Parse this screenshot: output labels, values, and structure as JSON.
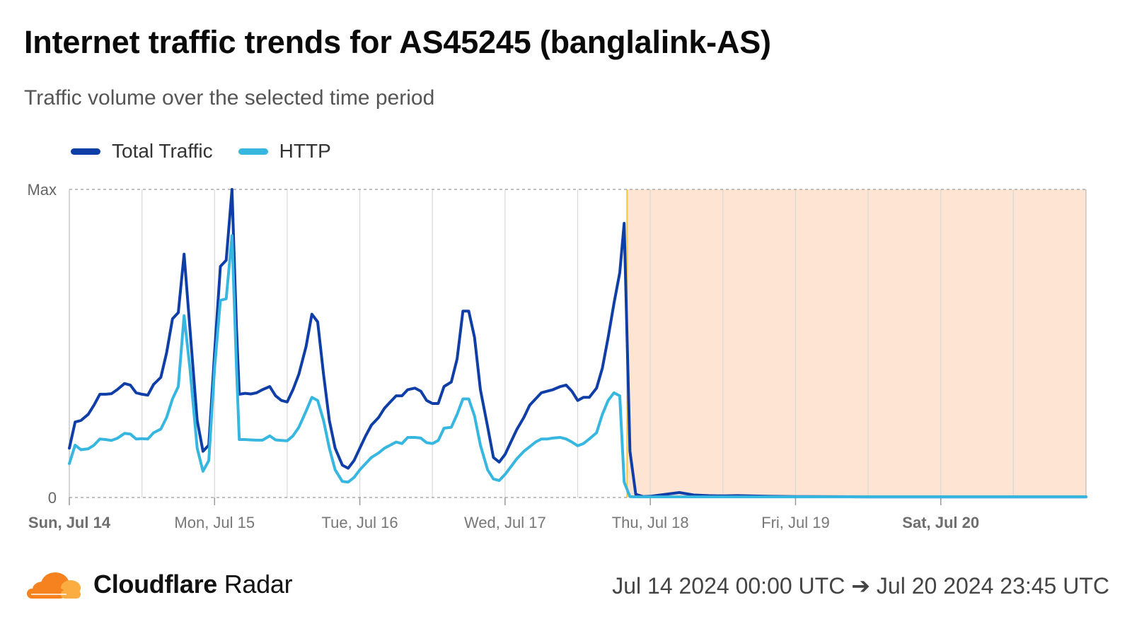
{
  "title": "Internet traffic trends for AS45245 (banglalink-AS)",
  "subtitle": "Traffic volume over the selected time period",
  "brand": {
    "name_bold": "Cloudflare",
    "name_regular": "Radar",
    "logo_colors": [
      "#f6821f",
      "#fbad41"
    ]
  },
  "date_range": "Jul 14 2024 00:00 UTC ➔ Jul 20 2024 23:45 UTC",
  "colors": {
    "total": "#0f3fa6",
    "http": "#37b7e0",
    "outage_fill": "#fde4d3",
    "outage_line": "#f5c542",
    "grid": "#d8d8d8"
  },
  "chart_data": {
    "type": "line",
    "x_unit": "days since Sun, Jul 14 2024 00:00 UTC",
    "xlim": [
      0,
      7
    ],
    "ylim": [
      0,
      1
    ],
    "y_ticks": [
      {
        "value": 0,
        "label": "0"
      },
      {
        "value": 1,
        "label": "Max"
      }
    ],
    "x_ticks": [
      {
        "value": 0,
        "label": "Sun, Jul 14",
        "bold": true
      },
      {
        "value": 1,
        "label": "Mon, Jul 15",
        "bold": false
      },
      {
        "value": 2,
        "label": "Tue, Jul 16",
        "bold": false
      },
      {
        "value": 3,
        "label": "Wed, Jul 17",
        "bold": false
      },
      {
        "value": 4,
        "label": "Thu, Jul 18",
        "bold": false
      },
      {
        "value": 5,
        "label": "Fri, Jul 19",
        "bold": false
      },
      {
        "value": 6,
        "label": "Sat, Jul 20",
        "bold": true
      }
    ],
    "grid": true,
    "legend": "top-left",
    "shaded_region": {
      "x_start": 3.84,
      "x_end": 7
    },
    "series": [
      {
        "name": "Total Traffic",
        "x": [
          0,
          0.04,
          0.08,
          0.13,
          0.17,
          0.21,
          0.25,
          0.29,
          0.33,
          0.38,
          0.42,
          0.46,
          0.5,
          0.54,
          0.58,
          0.63,
          0.67,
          0.71,
          0.75,
          0.79,
          0.83,
          0.88,
          0.92,
          0.96,
          1.0,
          1.04,
          1.08,
          1.12,
          1.15,
          1.17,
          1.21,
          1.25,
          1.29,
          1.33,
          1.38,
          1.42,
          1.46,
          1.5,
          1.54,
          1.58,
          1.63,
          1.67,
          1.71,
          1.75,
          1.79,
          1.83,
          1.88,
          1.92,
          1.96,
          2.0,
          2.04,
          2.08,
          2.13,
          2.17,
          2.21,
          2.25,
          2.29,
          2.33,
          2.38,
          2.42,
          2.46,
          2.5,
          2.54,
          2.58,
          2.63,
          2.67,
          2.71,
          2.75,
          2.79,
          2.83,
          2.88,
          2.92,
          2.96,
          3.0,
          3.04,
          3.08,
          3.13,
          3.17,
          3.21,
          3.25,
          3.29,
          3.33,
          3.38,
          3.42,
          3.46,
          3.5,
          3.54,
          3.58,
          3.63,
          3.67,
          3.71,
          3.75,
          3.79,
          3.82,
          3.86,
          3.9,
          3.95,
          4.0,
          4.1,
          4.2,
          4.3,
          4.4,
          4.5,
          4.6,
          4.8,
          5.0,
          5.5,
          6.0,
          6.5,
          7.0
        ],
        "values": [
          0.16,
          0.245,
          0.25,
          0.27,
          0.3,
          0.335,
          0.335,
          0.337,
          0.35,
          0.37,
          0.365,
          0.34,
          0.335,
          0.332,
          0.367,
          0.39,
          0.47,
          0.58,
          0.6,
          0.79,
          0.55,
          0.25,
          0.15,
          0.17,
          0.47,
          0.75,
          0.77,
          1.0,
          0.56,
          0.335,
          0.338,
          0.336,
          0.34,
          0.35,
          0.36,
          0.33,
          0.315,
          0.31,
          0.35,
          0.4,
          0.49,
          0.595,
          0.57,
          0.4,
          0.25,
          0.16,
          0.105,
          0.095,
          0.12,
          0.16,
          0.2,
          0.235,
          0.26,
          0.29,
          0.31,
          0.33,
          0.33,
          0.35,
          0.355,
          0.345,
          0.315,
          0.305,
          0.305,
          0.36,
          0.375,
          0.45,
          0.605,
          0.605,
          0.52,
          0.35,
          0.23,
          0.13,
          0.115,
          0.14,
          0.18,
          0.22,
          0.26,
          0.3,
          0.32,
          0.34,
          0.345,
          0.35,
          0.36,
          0.365,
          0.345,
          0.315,
          0.325,
          0.325,
          0.355,
          0.42,
          0.52,
          0.63,
          0.73,
          0.89,
          0.15,
          0.01,
          0.003,
          0.004,
          0.01,
          0.016,
          0.008,
          0.006,
          0.005,
          0.006,
          0.004,
          0.003,
          0.002,
          0.002,
          0.002,
          0.002
        ]
      },
      {
        "name": "HTTP",
        "x": [
          0,
          0.04,
          0.08,
          0.13,
          0.17,
          0.21,
          0.25,
          0.29,
          0.33,
          0.38,
          0.42,
          0.46,
          0.5,
          0.54,
          0.58,
          0.63,
          0.67,
          0.71,
          0.75,
          0.79,
          0.83,
          0.88,
          0.92,
          0.96,
          1.0,
          1.04,
          1.08,
          1.12,
          1.15,
          1.17,
          1.21,
          1.25,
          1.29,
          1.33,
          1.38,
          1.42,
          1.46,
          1.5,
          1.54,
          1.58,
          1.63,
          1.67,
          1.71,
          1.75,
          1.79,
          1.83,
          1.88,
          1.92,
          1.96,
          2.0,
          2.04,
          2.08,
          2.13,
          2.17,
          2.21,
          2.25,
          2.29,
          2.33,
          2.38,
          2.42,
          2.46,
          2.5,
          2.54,
          2.58,
          2.63,
          2.67,
          2.71,
          2.75,
          2.79,
          2.83,
          2.88,
          2.92,
          2.96,
          3.0,
          3.04,
          3.08,
          3.13,
          3.17,
          3.21,
          3.25,
          3.29,
          3.33,
          3.38,
          3.42,
          3.46,
          3.5,
          3.54,
          3.58,
          3.63,
          3.67,
          3.71,
          3.75,
          3.79,
          3.82,
          3.86,
          3.9,
          3.95,
          4.0,
          4.1,
          4.2,
          4.3,
          4.4,
          4.5,
          4.6,
          4.8,
          5.0,
          5.5,
          6.0,
          6.5,
          7.0
        ],
        "values": [
          0.11,
          0.17,
          0.155,
          0.158,
          0.17,
          0.19,
          0.188,
          0.185,
          0.192,
          0.208,
          0.206,
          0.19,
          0.191,
          0.19,
          0.21,
          0.222,
          0.26,
          0.32,
          0.36,
          0.59,
          0.42,
          0.16,
          0.085,
          0.12,
          0.42,
          0.64,
          0.645,
          0.85,
          0.43,
          0.188,
          0.188,
          0.187,
          0.186,
          0.186,
          0.2,
          0.187,
          0.185,
          0.184,
          0.2,
          0.228,
          0.28,
          0.325,
          0.315,
          0.25,
          0.16,
          0.09,
          0.052,
          0.05,
          0.065,
          0.09,
          0.11,
          0.13,
          0.145,
          0.16,
          0.17,
          0.18,
          0.175,
          0.195,
          0.195,
          0.193,
          0.178,
          0.175,
          0.185,
          0.225,
          0.228,
          0.27,
          0.32,
          0.32,
          0.265,
          0.17,
          0.09,
          0.06,
          0.055,
          0.075,
          0.1,
          0.125,
          0.15,
          0.165,
          0.18,
          0.19,
          0.19,
          0.193,
          0.195,
          0.19,
          0.18,
          0.168,
          0.175,
          0.19,
          0.21,
          0.27,
          0.315,
          0.34,
          0.33,
          0.05,
          0.003,
          0.002,
          0.002,
          0.002,
          0.002,
          0.002,
          0.002,
          0.002,
          0.002,
          0.002,
          0.002,
          0.002,
          0.002,
          0.002,
          0.002,
          0.002
        ]
      }
    ]
  }
}
